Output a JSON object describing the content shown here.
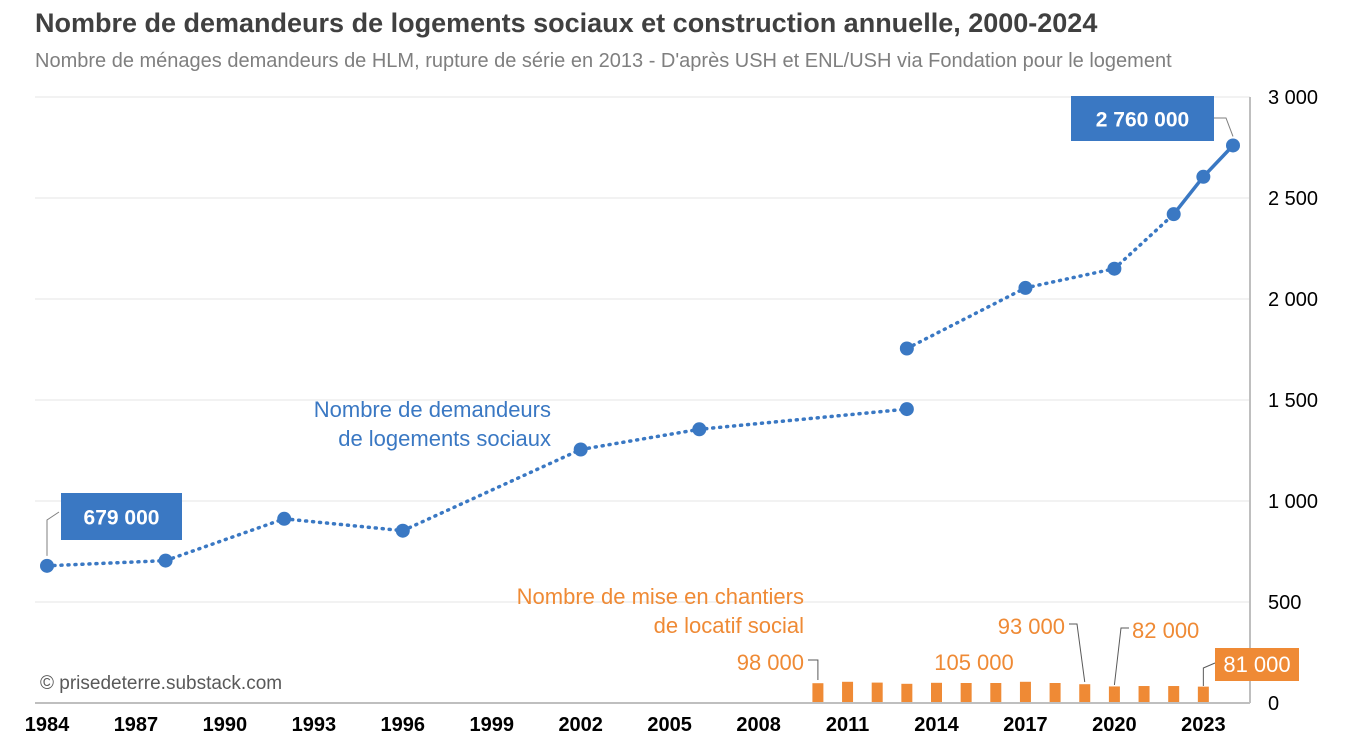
{
  "title": "Nombre de demandeurs de logements sociaux et construction annuelle, 2000-2024",
  "subtitle": "Nombre de ménages demandeurs de HLM, rupture de série en 2013 - D'après USH et ENL/USH via Fondation pour le logement",
  "credit": "© prisedeterre.substack.com",
  "colors": {
    "demandeurs": "#3a78c3",
    "chantiers": "#ef8a35",
    "axis": "#bfbfbf",
    "grid": "#e6e6e6"
  },
  "chart_data": {
    "type": "line",
    "xlim": [
      1984,
      2024
    ],
    "ylim": [
      0,
      3000
    ],
    "x_ticks": [
      "1984",
      "1987",
      "1990",
      "1993",
      "1996",
      "1999",
      "2002",
      "2005",
      "2008",
      "2011",
      "2014",
      "2017",
      "2020",
      "2023"
    ],
    "y_ticks": [
      "0",
      "500",
      "1 000",
      "1 500",
      "2 000",
      "2 500",
      "3 000"
    ],
    "y_axis_position": "right",
    "grid": true,
    "unit": "milliers",
    "series": [
      {
        "name": "Nombre de demandeurs de logements sociaux",
        "name_lines": [
          "Nombre de demandeurs",
          "de logements sociaux"
        ],
        "type": "line",
        "segments": [
          {
            "style": "dotted",
            "points": [
              [
                1984,
                679
              ],
              [
                1988,
                705
              ],
              [
                1992,
                912
              ],
              [
                1996,
                853
              ],
              [
                2002,
                1255
              ],
              [
                2006,
                1355
              ],
              [
                2013,
                1455
              ]
            ]
          },
          {
            "style": "dotted",
            "points": [
              [
                2013,
                1755
              ],
              [
                2017,
                2055
              ],
              [
                2020,
                2150
              ],
              [
                2022,
                2420
              ]
            ]
          },
          {
            "style": "solid",
            "points": [
              [
                2022,
                2420
              ],
              [
                2023,
                2605
              ],
              [
                2024,
                2760
              ]
            ]
          }
        ],
        "labels": [
          {
            "x": 1984,
            "text": "679 000"
          },
          {
            "x": 2024,
            "text": "2 760 000"
          }
        ]
      },
      {
        "name": "Nombre de mise en chantiers de locatif social",
        "name_lines": [
          "Nombre de mise en chantiers",
          "de locatif social"
        ],
        "type": "bar",
        "x": [
          2010,
          2011,
          2012,
          2013,
          2014,
          2015,
          2016,
          2017,
          2018,
          2019,
          2020,
          2021,
          2022,
          2023
        ],
        "values": [
          98,
          105,
          101,
          95,
          100,
          99,
          99,
          105,
          99,
          93,
          82,
          84,
          84,
          81
        ],
        "labels": [
          {
            "x": 2010,
            "text": "98 000"
          },
          {
            "x": 2011,
            "text": "105 000"
          },
          {
            "x": 2019,
            "text": "93 000"
          },
          {
            "x": 2020,
            "text": "82 000"
          },
          {
            "x": 2023,
            "text": "81 000"
          }
        ]
      }
    ]
  }
}
